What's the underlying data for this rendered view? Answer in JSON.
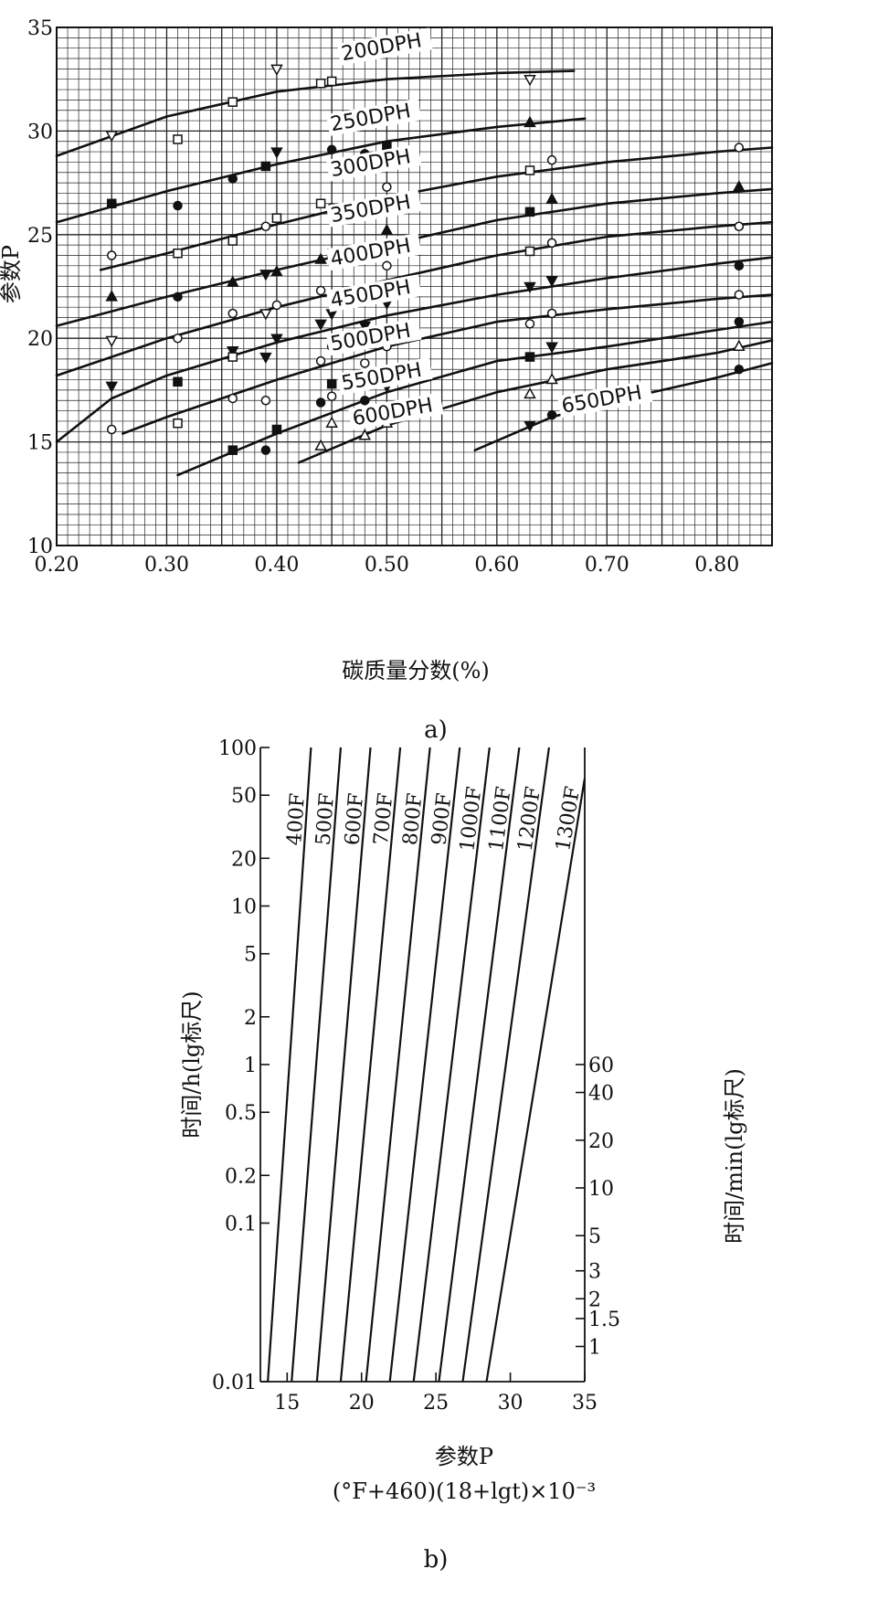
{
  "chart_data": [
    {
      "panel": "a",
      "caption": "a)",
      "type": "line",
      "xlabel": "碳质量分数(%)",
      "ylabel": "参数P",
      "xlim": [
        0.2,
        0.85
      ],
      "ylim": [
        10,
        35
      ],
      "x_ticks": [
        "0.20",
        "0.30",
        "0.40",
        "0.50",
        "0.60",
        "0.70",
        "0.80"
      ],
      "y_ticks": [
        "10",
        "15",
        "20",
        "25",
        "30",
        "35"
      ],
      "grid": true,
      "series": [
        {
          "name": "200DPH",
          "x": [
            0.2,
            0.3,
            0.4,
            0.5,
            0.6,
            0.67
          ],
          "y": [
            28.8,
            30.7,
            31.9,
            32.5,
            32.8,
            32.9
          ]
        },
        {
          "name": "250DPH",
          "x": [
            0.2,
            0.3,
            0.4,
            0.5,
            0.6,
            0.68
          ],
          "y": [
            25.6,
            27.1,
            28.4,
            29.5,
            30.2,
            30.6
          ]
        },
        {
          "name": "300DPH",
          "x": [
            0.24,
            0.3,
            0.4,
            0.5,
            0.6,
            0.7,
            0.8,
            0.85
          ],
          "y": [
            23.3,
            24.1,
            25.5,
            26.8,
            27.8,
            28.5,
            29.0,
            29.2
          ]
        },
        {
          "name": "350DPH",
          "x": [
            0.2,
            0.3,
            0.4,
            0.5,
            0.6,
            0.7,
            0.8,
            0.85
          ],
          "y": [
            20.6,
            22.0,
            23.3,
            24.5,
            25.7,
            26.5,
            27.0,
            27.2
          ]
        },
        {
          "name": "400DPH",
          "x": [
            0.2,
            0.3,
            0.4,
            0.5,
            0.6,
            0.7,
            0.8,
            0.85
          ],
          "y": [
            18.2,
            20.0,
            21.5,
            22.8,
            24.0,
            24.9,
            25.4,
            25.6
          ]
        },
        {
          "name": "450DPH",
          "x": [
            0.2,
            0.25,
            0.3,
            0.4,
            0.5,
            0.6,
            0.7,
            0.8,
            0.85
          ],
          "y": [
            15.0,
            17.1,
            18.2,
            19.8,
            21.1,
            22.1,
            22.9,
            23.6,
            23.9
          ]
        },
        {
          "name": "500DPH",
          "x": [
            0.26,
            0.3,
            0.4,
            0.5,
            0.6,
            0.7,
            0.8,
            0.85
          ],
          "y": [
            15.4,
            16.2,
            18.0,
            19.6,
            20.8,
            21.4,
            21.9,
            22.1
          ]
        },
        {
          "name": "550DPH",
          "x": [
            0.31,
            0.4,
            0.5,
            0.6,
            0.7,
            0.8,
            0.85
          ],
          "y": [
            13.4,
            15.4,
            17.4,
            18.9,
            19.6,
            20.4,
            20.8
          ]
        },
        {
          "name": "600DPH",
          "x": [
            0.42,
            0.5,
            0.6,
            0.7,
            0.8,
            0.85
          ],
          "y": [
            14.0,
            15.8,
            17.4,
            18.5,
            19.3,
            19.9
          ]
        },
        {
          "name": "650DPH",
          "x": [
            0.58,
            0.65,
            0.7,
            0.8,
            0.85
          ],
          "y": [
            14.6,
            16.2,
            16.9,
            18.1,
            18.8
          ]
        }
      ],
      "points": [
        {
          "x": 0.25,
          "y": 29.8,
          "m": "tri_down_open"
        },
        {
          "x": 0.31,
          "y": 29.6,
          "m": "square_open"
        },
        {
          "x": 0.36,
          "y": 31.4,
          "m": "square_open"
        },
        {
          "x": 0.4,
          "y": 33.0,
          "m": "tri_down_open"
        },
        {
          "x": 0.44,
          "y": 32.3,
          "m": "square_open"
        },
        {
          "x": 0.45,
          "y": 32.4,
          "m": "square_open"
        },
        {
          "x": 0.63,
          "y": 32.5,
          "m": "tri_down_open"
        },
        {
          "x": 0.25,
          "y": 26.5,
          "m": "square_solid"
        },
        {
          "x": 0.31,
          "y": 26.4,
          "m": "circle_solid"
        },
        {
          "x": 0.36,
          "y": 27.7,
          "m": "circle_solid"
        },
        {
          "x": 0.39,
          "y": 28.3,
          "m": "square_solid"
        },
        {
          "x": 0.4,
          "y": 29.0,
          "m": "tri_down_solid"
        },
        {
          "x": 0.45,
          "y": 29.1,
          "m": "circle_solid"
        },
        {
          "x": 0.48,
          "y": 28.9,
          "m": "circle_solid"
        },
        {
          "x": 0.5,
          "y": 29.3,
          "m": "square_solid"
        },
        {
          "x": 0.63,
          "y": 30.4,
          "m": "tri_up_solid"
        },
        {
          "x": 0.25,
          "y": 24.0,
          "m": "circle_open"
        },
        {
          "x": 0.31,
          "y": 24.1,
          "m": "square_open"
        },
        {
          "x": 0.36,
          "y": 24.7,
          "m": "square_open"
        },
        {
          "x": 0.39,
          "y": 25.4,
          "m": "circle_open"
        },
        {
          "x": 0.4,
          "y": 25.8,
          "m": "square_open"
        },
        {
          "x": 0.44,
          "y": 26.5,
          "m": "square_open"
        },
        {
          "x": 0.45,
          "y": 26.3,
          "m": "circle_open"
        },
        {
          "x": 0.48,
          "y": 26.5,
          "m": "circle_open"
        },
        {
          "x": 0.5,
          "y": 27.3,
          "m": "circle_open"
        },
        {
          "x": 0.63,
          "y": 28.1,
          "m": "square_open"
        },
        {
          "x": 0.65,
          "y": 28.6,
          "m": "circle_open"
        },
        {
          "x": 0.82,
          "y": 29.2,
          "m": "circle_open"
        },
        {
          "x": 0.25,
          "y": 22.0,
          "m": "tri_up_solid"
        },
        {
          "x": 0.31,
          "y": 22.0,
          "m": "circle_solid"
        },
        {
          "x": 0.36,
          "y": 22.7,
          "m": "tri_up_solid"
        },
        {
          "x": 0.39,
          "y": 23.1,
          "m": "tri_down_solid"
        },
        {
          "x": 0.4,
          "y": 23.2,
          "m": "tri_up_solid"
        },
        {
          "x": 0.44,
          "y": 23.8,
          "m": "tri_up_solid"
        },
        {
          "x": 0.45,
          "y": 24.1,
          "m": "square_solid"
        },
        {
          "x": 0.48,
          "y": 24.1,
          "m": "tri_up_solid"
        },
        {
          "x": 0.5,
          "y": 25.2,
          "m": "tri_up_solid"
        },
        {
          "x": 0.63,
          "y": 26.1,
          "m": "square_solid"
        },
        {
          "x": 0.65,
          "y": 26.7,
          "m": "tri_up_solid"
        },
        {
          "x": 0.82,
          "y": 27.3,
          "m": "tri_up_solid"
        },
        {
          "x": 0.36,
          "y": 21.2,
          "m": "circle_open"
        },
        {
          "x": 0.39,
          "y": 21.2,
          "m": "tri_down_open"
        },
        {
          "x": 0.4,
          "y": 21.6,
          "m": "circle_open"
        },
        {
          "x": 0.44,
          "y": 22.3,
          "m": "circle_open"
        },
        {
          "x": 0.48,
          "y": 22.0,
          "m": "circle_open"
        },
        {
          "x": 0.5,
          "y": 23.5,
          "m": "circle_open"
        },
        {
          "x": 0.63,
          "y": 24.2,
          "m": "square_open"
        },
        {
          "x": 0.65,
          "y": 24.6,
          "m": "circle_open"
        },
        {
          "x": 0.82,
          "y": 25.4,
          "m": "circle_open"
        },
        {
          "x": 0.25,
          "y": 17.7,
          "m": "tri_down_solid"
        },
        {
          "x": 0.31,
          "y": 17.9,
          "m": "square_solid"
        },
        {
          "x": 0.36,
          "y": 19.4,
          "m": "tri_down_solid"
        },
        {
          "x": 0.39,
          "y": 19.1,
          "m": "tri_down_solid"
        },
        {
          "x": 0.4,
          "y": 20.0,
          "m": "tri_down_solid"
        },
        {
          "x": 0.44,
          "y": 20.7,
          "m": "tri_down_solid"
        },
        {
          "x": 0.45,
          "y": 21.2,
          "m": "tri_down_solid"
        },
        {
          "x": 0.48,
          "y": 20.6,
          "m": "tri_down_solid"
        },
        {
          "x": 0.5,
          "y": 21.7,
          "m": "tri_down_solid"
        },
        {
          "x": 0.63,
          "y": 22.5,
          "m": "tri_down_solid"
        },
        {
          "x": 0.65,
          "y": 22.8,
          "m": "tri_down_solid"
        },
        {
          "x": 0.82,
          "y": 23.5,
          "m": "circle_solid"
        },
        {
          "x": 0.25,
          "y": 19.9,
          "m": "tri_down_open"
        },
        {
          "x": 0.31,
          "y": 20.0,
          "m": "circle_open"
        },
        {
          "x": 0.36,
          "y": 19.1,
          "m": "square_open"
        },
        {
          "x": 0.39,
          "y": 17.0,
          "m": "circle_open"
        },
        {
          "x": 0.44,
          "y": 18.9,
          "m": "circle_open"
        },
        {
          "x": 0.45,
          "y": 19.6,
          "m": "circle_open"
        },
        {
          "x": 0.48,
          "y": 18.8,
          "m": "circle_open"
        },
        {
          "x": 0.5,
          "y": 19.6,
          "m": "circle_open"
        },
        {
          "x": 0.63,
          "y": 20.7,
          "m": "circle_open"
        },
        {
          "x": 0.65,
          "y": 21.2,
          "m": "circle_open"
        },
        {
          "x": 0.82,
          "y": 22.1,
          "m": "circle_open"
        },
        {
          "x": 0.25,
          "y": 15.6,
          "m": "circle_open"
        },
        {
          "x": 0.31,
          "y": 15.9,
          "m": "square_open"
        },
        {
          "x": 0.36,
          "y": 17.1,
          "m": "circle_open"
        },
        {
          "x": 0.45,
          "y": 17.2,
          "m": "circle_open"
        },
        {
          "x": 0.63,
          "y": 19.1,
          "m": "square_solid"
        },
        {
          "x": 0.65,
          "y": 19.6,
          "m": "tri_down_solid"
        },
        {
          "x": 0.82,
          "y": 20.8,
          "m": "circle_solid"
        },
        {
          "x": 0.36,
          "y": 14.6,
          "m": "square_solid"
        },
        {
          "x": 0.39,
          "y": 14.6,
          "m": "circle_solid"
        },
        {
          "x": 0.4,
          "y": 15.6,
          "m": "square_solid"
        },
        {
          "x": 0.44,
          "y": 16.9,
          "m": "circle_solid"
        },
        {
          "x": 0.45,
          "y": 17.8,
          "m": "square_solid"
        },
        {
          "x": 0.48,
          "y": 17.0,
          "m": "circle_solid"
        },
        {
          "x": 0.5,
          "y": 17.7,
          "m": "tri_down_solid"
        },
        {
          "x": 0.44,
          "y": 14.8,
          "m": "tri_up_open"
        },
        {
          "x": 0.45,
          "y": 15.9,
          "m": "tri_up_open"
        },
        {
          "x": 0.48,
          "y": 15.3,
          "m": "tri_up_open"
        },
        {
          "x": 0.5,
          "y": 15.9,
          "m": "tri_up_open"
        },
        {
          "x": 0.63,
          "y": 17.3,
          "m": "tri_up_open"
        },
        {
          "x": 0.65,
          "y": 18.0,
          "m": "tri_up_open"
        },
        {
          "x": 0.82,
          "y": 19.6,
          "m": "tri_up_open"
        },
        {
          "x": 0.63,
          "y": 15.8,
          "m": "tri_down_solid"
        },
        {
          "x": 0.65,
          "y": 16.3,
          "m": "circle_solid"
        },
        {
          "x": 0.82,
          "y": 18.5,
          "m": "circle_solid"
        }
      ]
    },
    {
      "panel": "b",
      "caption": "b)",
      "type": "line",
      "xlabel": "参数P",
      "xlabel_formula": "(°F+460)(18+lgt)×10⁻³",
      "ylabel_left": "时间/h(lg标尺)",
      "ylabel_right": "时间/min(lg标尺)",
      "xlim": [
        13.2,
        35
      ],
      "ylim_log": [
        0.01,
        100
      ],
      "x_ticks": [
        "15",
        "20",
        "25",
        "30",
        "35"
      ],
      "y_ticks_left": [
        "100",
        "50",
        "20",
        "10",
        "5",
        "2",
        "1",
        "0.5",
        "0.2",
        "0.1",
        "0.01"
      ],
      "y_ticks_right": [
        "60",
        "40",
        "20",
        "10",
        "5",
        "3",
        "2",
        "1.5",
        "1"
      ],
      "series": [
        {
          "name": "400F",
          "x": [
            13.7,
            16.6
          ],
          "y": [
            0.01,
            100
          ]
        },
        {
          "name": "500F",
          "x": [
            15.3,
            18.6
          ],
          "y": [
            0.01,
            100
          ]
        },
        {
          "name": "600F",
          "x": [
            17.0,
            20.6
          ],
          "y": [
            0.01,
            100
          ]
        },
        {
          "name": "700F",
          "x": [
            18.6,
            22.6
          ],
          "y": [
            0.01,
            100
          ]
        },
        {
          "name": "800F",
          "x": [
            20.3,
            24.6
          ],
          "y": [
            0.01,
            100
          ]
        },
        {
          "name": "900F",
          "x": [
            21.9,
            26.6
          ],
          "y": [
            0.01,
            100
          ]
        },
        {
          "name": "1000F",
          "x": [
            23.5,
            28.6
          ],
          "y": [
            0.01,
            100
          ]
        },
        {
          "name": "1100F",
          "x": [
            25.2,
            30.6
          ],
          "y": [
            0.01,
            100
          ]
        },
        {
          "name": "1200F",
          "x": [
            26.8,
            32.6
          ],
          "y": [
            0.01,
            100
          ]
        },
        {
          "name": "1300F",
          "x": [
            28.4,
            35.0
          ],
          "y": [
            0.01,
            64
          ]
        }
      ]
    }
  ]
}
